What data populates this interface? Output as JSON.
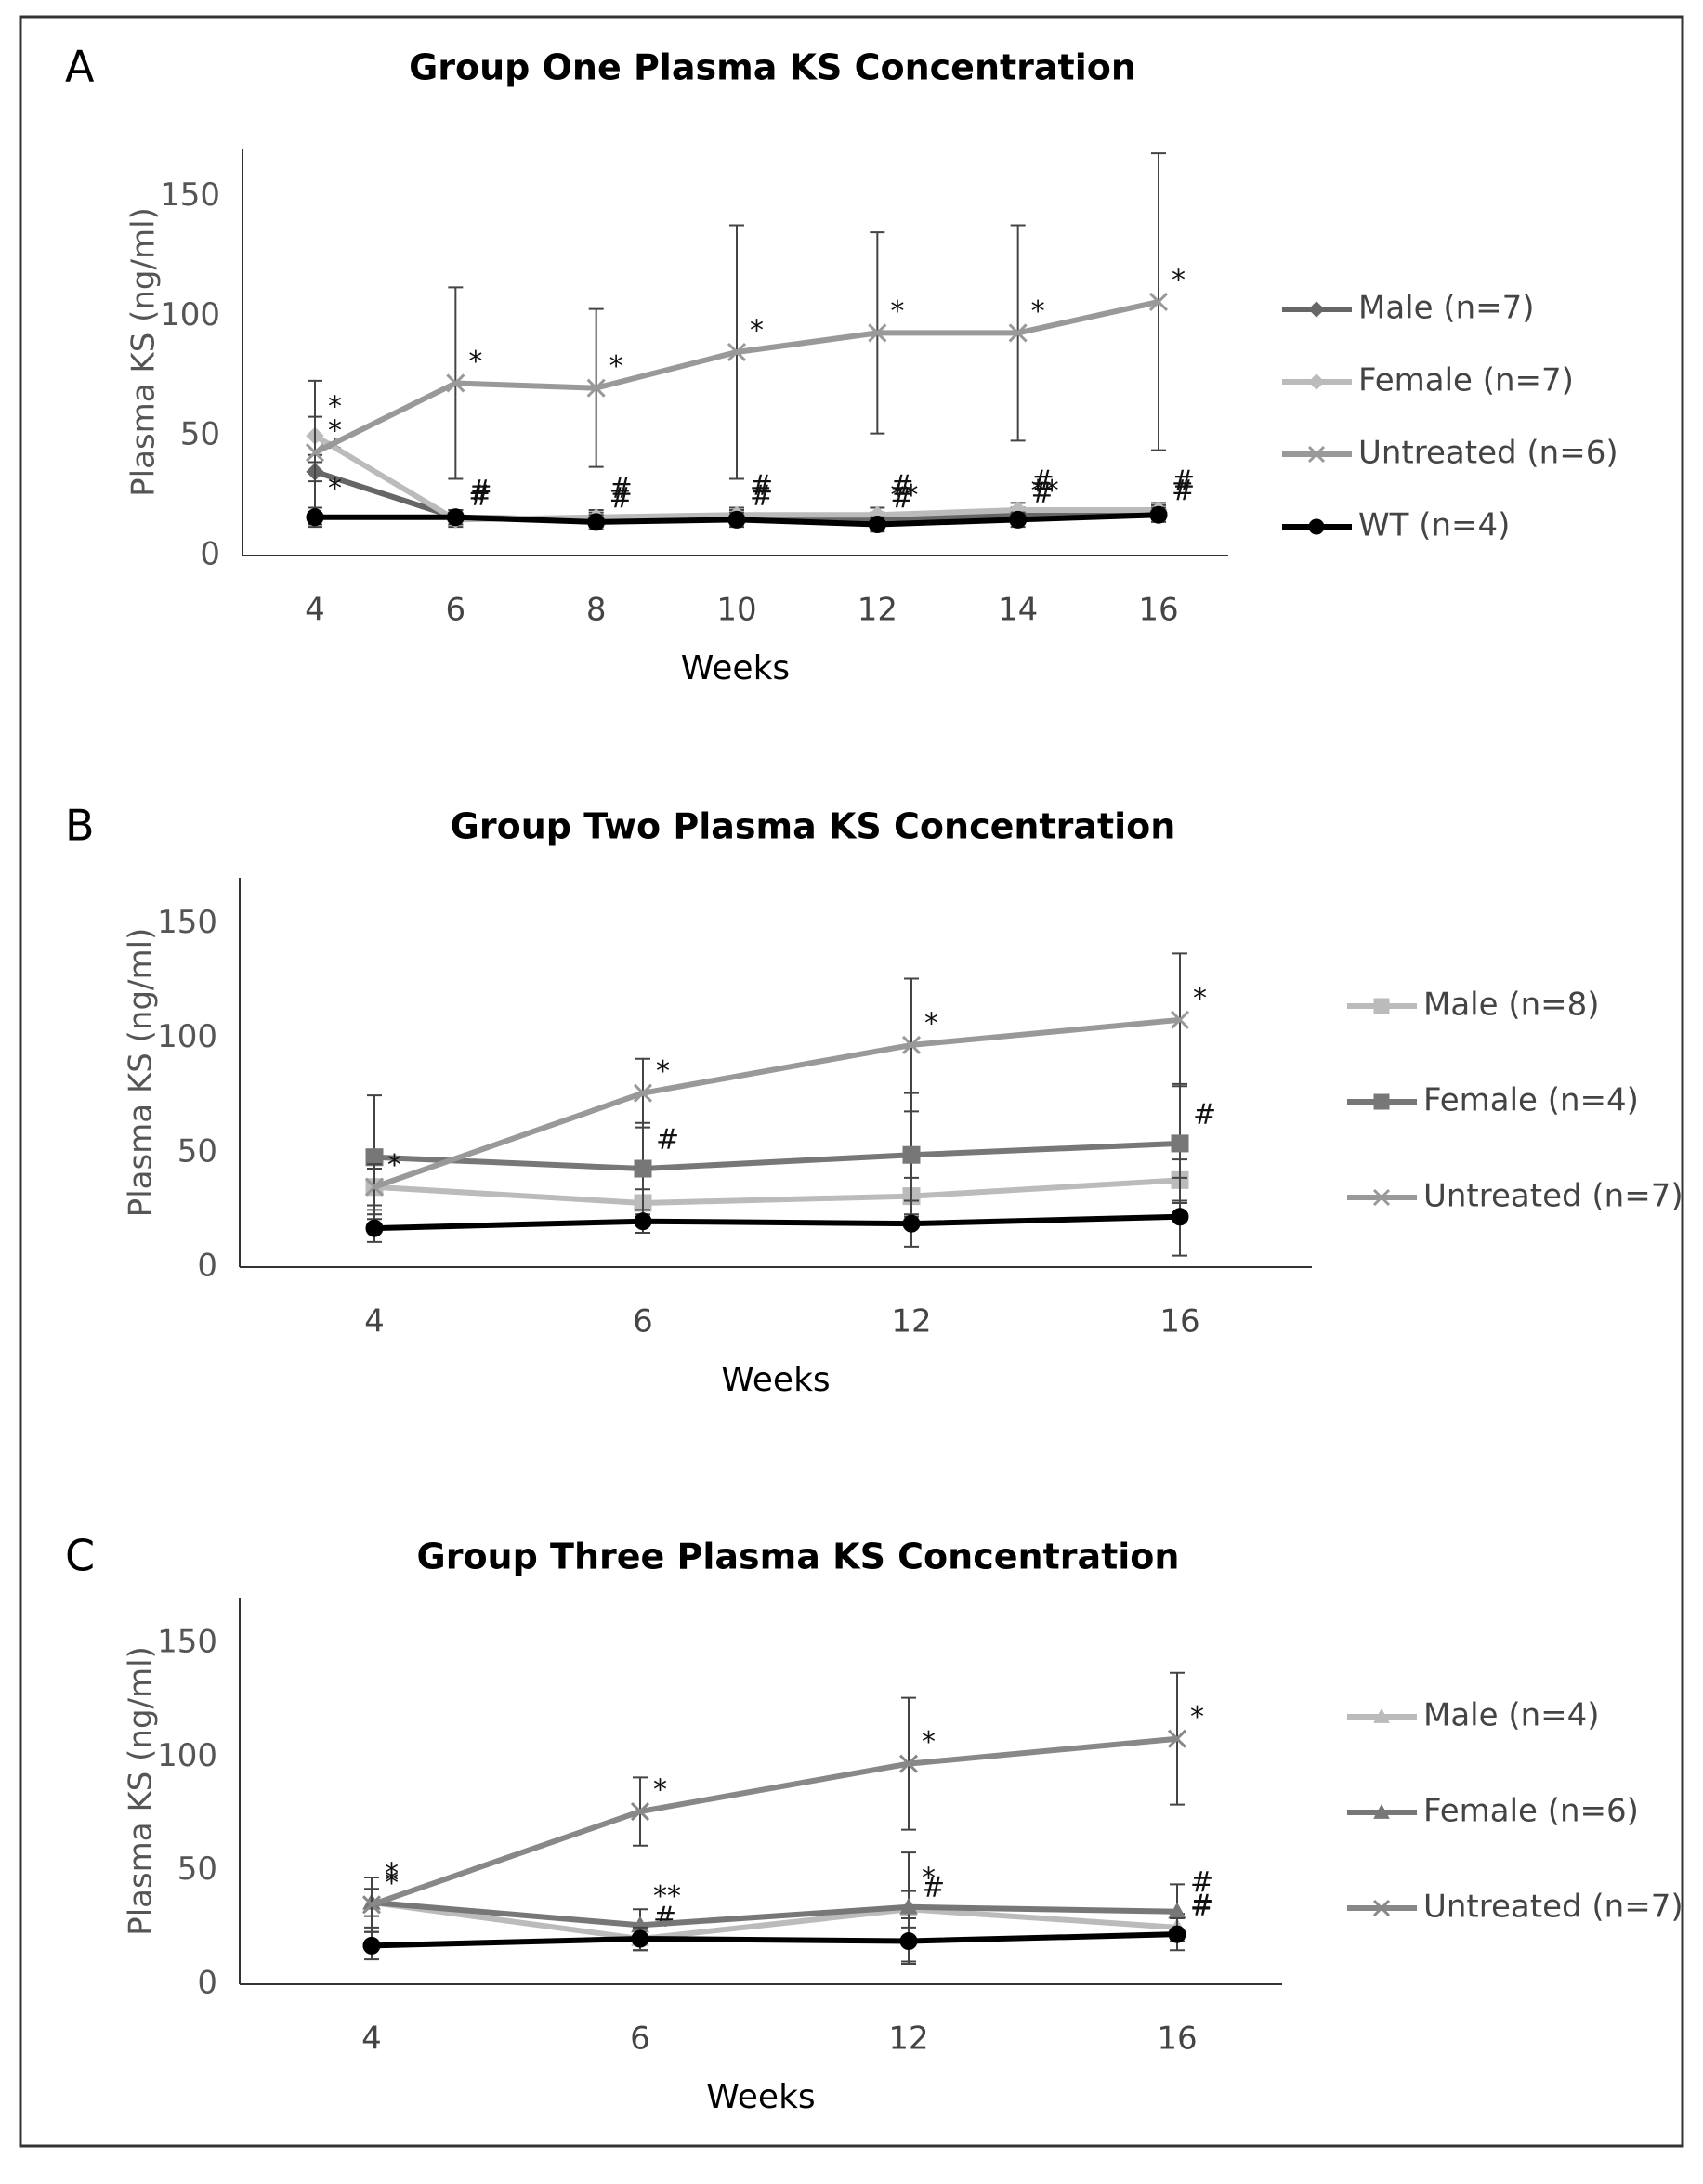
{
  "chart_data": [
    {
      "type": "line",
      "panel": "A",
      "title": "Group One Plasma KS Concentration",
      "xlabel": "Weeks",
      "ylabel": "Plasma KS (ng/ml)",
      "categories": [
        "4",
        "6",
        "8",
        "10",
        "12",
        "14",
        "16"
      ],
      "ylim": [
        0,
        170
      ],
      "yticks": [
        0,
        50,
        100,
        150
      ],
      "series": [
        {
          "name": "Male (n=7)",
          "color": "#666666",
          "marker": "diamond",
          "values": [
            35,
            16,
            15,
            16,
            15,
            17,
            18
          ],
          "errors": [
            4,
            3,
            3,
            3,
            3,
            3,
            3
          ],
          "annotations": [
            "*",
            "#",
            "#",
            "#",
            "#",
            "#",
            "#"
          ]
        },
        {
          "name": "Female (n=7)",
          "color": "#bbbbbb",
          "marker": "diamond",
          "values": [
            50,
            15,
            16,
            17,
            17,
            19,
            19
          ],
          "errors": [
            8,
            3,
            3,
            3,
            3,
            3,
            3
          ],
          "annotations": [
            "*",
            "#",
            "#",
            "#",
            "#",
            "#",
            "#"
          ]
        },
        {
          "name": "Untreated (n=6)",
          "color": "#999999",
          "marker": "x",
          "values": [
            43,
            72,
            70,
            85,
            93,
            93,
            106
          ],
          "errors": [
            30,
            40,
            33,
            53,
            42,
            45,
            62
          ],
          "annotations": [
            "*",
            "*",
            "*",
            "*",
            "*",
            "*",
            "*"
          ]
        },
        {
          "name": "WT (n=4)",
          "color": "#000000",
          "marker": "circle",
          "values": [
            16,
            16,
            14,
            15,
            13,
            15,
            17
          ],
          "errors": [
            4,
            3,
            3,
            3,
            3,
            3,
            3
          ],
          "annotations": [
            "*",
            null,
            null,
            null,
            "**",
            "**",
            null
          ]
        }
      ]
    },
    {
      "type": "line",
      "panel": "B",
      "title": "Group Two Plasma KS Concentration",
      "xlabel": "Weeks",
      "ylabel": "Plasma KS (ng/ml)",
      "categories": [
        "4",
        "6",
        "12",
        "16"
      ],
      "ylim": [
        0,
        170
      ],
      "yticks": [
        0,
        50,
        100,
        150
      ],
      "series": [
        {
          "name": "Male (n=8)",
          "color": "#bbbbbb",
          "marker": "square",
          "values": [
            35,
            28,
            31,
            38
          ],
          "errors": [
            8,
            6,
            8,
            9
          ],
          "annotations": [
            "*",
            null,
            null,
            null
          ]
        },
        {
          "name": "Female (n=4)",
          "color": "#777777",
          "marker": "square",
          "values": [
            48,
            43,
            49,
            54
          ],
          "errors": [
            27,
            20,
            27,
            26
          ],
          "annotations": [
            null,
            "#",
            null,
            "#"
          ]
        },
        {
          "name": "Untreated (n=7)",
          "color": "#999999",
          "marker": "x",
          "values": [
            35,
            76,
            97,
            108
          ],
          "errors": [
            10,
            15,
            29,
            29
          ],
          "annotations": [
            "*",
            "*",
            "*",
            "*"
          ]
        },
        {
          "color": "#000000",
          "marker": "circle",
          "values": [
            17,
            20,
            19,
            22
          ],
          "errors": [
            6,
            5,
            10,
            17
          ],
          "annotations": [
            null,
            null,
            null,
            null
          ]
        }
      ]
    },
    {
      "type": "line",
      "panel": "C",
      "title": "Group Three Plasma KS Concentration",
      "xlabel": "Weeks",
      "ylabel": "Plasma KS (ng/ml)",
      "categories": [
        "4",
        "6",
        "12",
        "16"
      ],
      "ylim": [
        0,
        170
      ],
      "yticks": [
        0,
        50,
        100,
        150
      ],
      "series": [
        {
          "name": "Male (n=4)",
          "color": "#bbbbbb",
          "marker": "triangle",
          "values": [
            36,
            20,
            33,
            25
          ],
          "errors": [
            6,
            5,
            8,
            6
          ],
          "annotations": [
            "*",
            "#",
            "#",
            "#"
          ]
        },
        {
          "name": "Female (n=6)",
          "color": "#777777",
          "marker": "triangle",
          "values": [
            36,
            26,
            34,
            32
          ],
          "errors": [
            11,
            7,
            24,
            12
          ],
          "annotations": [
            "*",
            "**",
            "*",
            "#"
          ]
        },
        {
          "name": "Untreated (n=7)",
          "color": "#888888",
          "marker": "x",
          "values": [
            35,
            76,
            97,
            108
          ],
          "errors": [
            12,
            15,
            29,
            29
          ],
          "annotations": [
            "*",
            "*",
            "*",
            "*"
          ]
        },
        {
          "color": "#000000",
          "marker": "circle",
          "values": [
            17,
            20,
            19,
            22
          ],
          "errors": [
            6,
            5,
            10,
            7
          ],
          "annotations": [
            null,
            null,
            null,
            "#"
          ]
        }
      ]
    }
  ]
}
